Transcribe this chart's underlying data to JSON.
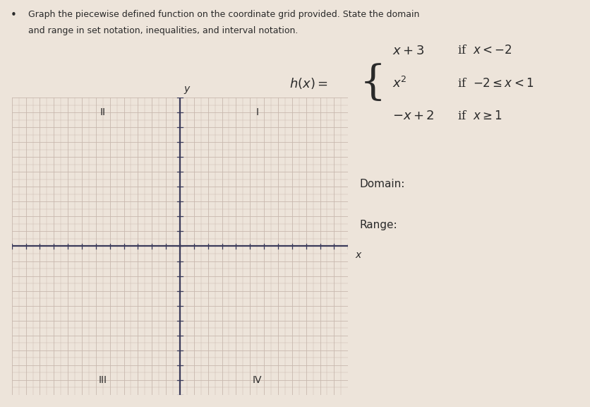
{
  "background_color": "#ede4da",
  "grid_color": "#c8b8ae",
  "axis_color": "#3a3a5a",
  "text_color": "#2a2a2a",
  "title_line1": "Graph the piecewise defined function on the coordinate grid provided. State the domain",
  "title_line2": "and range in set notation, inequalities, and interval notation.",
  "domain_label": "Domain:",
  "range_label": "Range:",
  "quadrant_II": "II",
  "quadrant_I": "I",
  "quadrant_III": "III",
  "quadrant_IV": "IV",
  "x_label": "x",
  "y_label": "y",
  "xlim": [
    -12,
    12
  ],
  "ylim": [
    -10,
    10
  ]
}
